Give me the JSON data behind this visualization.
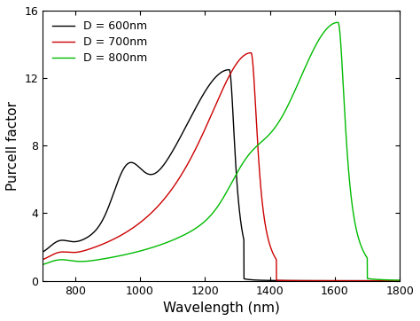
{
  "title": "",
  "xlabel": "Wavelength (nm)",
  "ylabel": "Purcell factor",
  "xlim": [
    700,
    1800
  ],
  "ylim": [
    0,
    16
  ],
  "xticks": [
    800,
    1000,
    1200,
    1400,
    1600,
    1800
  ],
  "yticks": [
    0,
    4,
    8,
    12,
    16
  ],
  "legend": [
    "D = 600nm",
    "D = 700nm",
    "D = 800nm"
  ],
  "colors": [
    "#000000",
    "#cc0000",
    "#00bb00"
  ],
  "figsize": [
    4.74,
    3.62
  ],
  "dpi": 100
}
